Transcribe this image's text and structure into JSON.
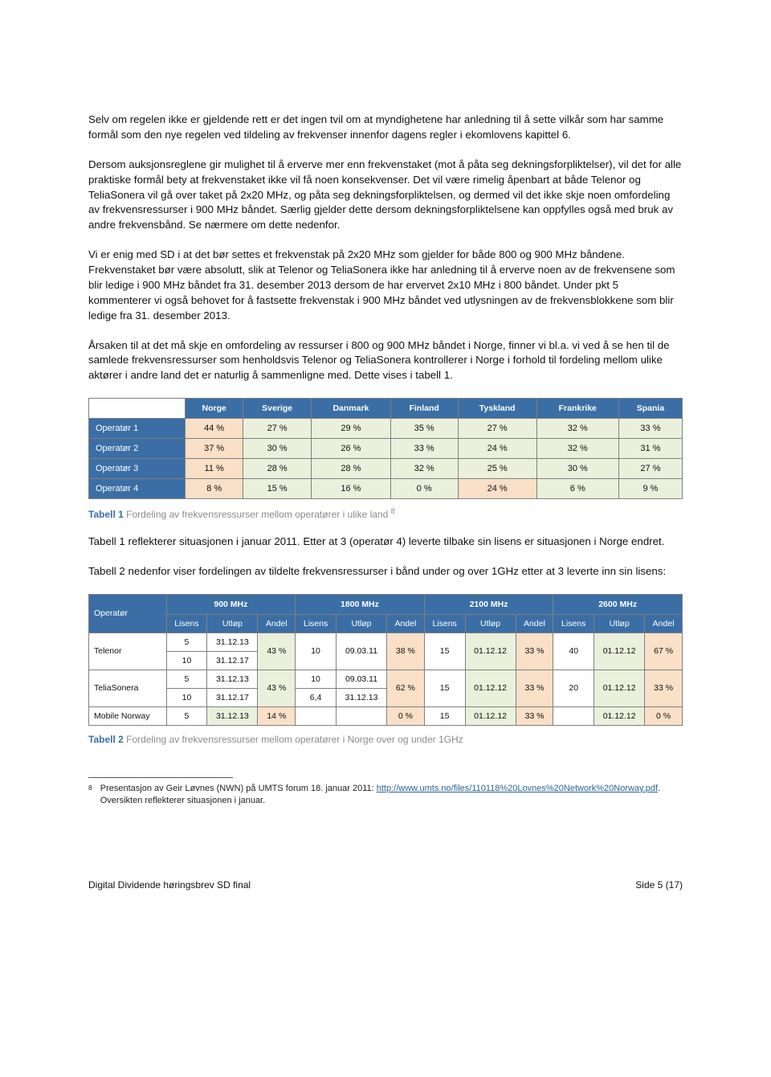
{
  "paragraphs": {
    "p1": "Selv om regelen ikke er gjeldende rett er det ingen tvil om at myndighetene har anledning til å sette vilkår som har samme formål som den nye regelen ved tildeling av frekvenser innenfor dagens regler i ekomlovens kapittel 6.",
    "p2": "Dersom auksjonsreglene gir mulighet til å erverve mer enn frekvenstaket (mot å påta seg dekningsforpliktelser), vil det for alle praktiske formål bety at frekvenstaket ikke vil få noen konsekvenser. Det vil være rimelig åpenbart at både Telenor og TeliaSonera vil gå over taket på 2x20 MHz, og påta seg dekningsforpliktelsen, og dermed vil det ikke skje noen omfordeling av frekvensressurser i 900 MHz båndet. Særlig gjelder dette dersom dekningsforpliktelsene kan oppfylles også med bruk av andre frekvensbånd. Se nærmere om dette nedenfor.",
    "p3": "Vi er enig med SD i at det bør settes et frekvenstak på 2x20 MHz som gjelder for både 800 og 900 MHz båndene. Frekvenstaket bør være absolutt, slik at Telenor og TeliaSonera ikke har anledning til å erverve noen av de frekvensene som blir ledige i 900 MHz båndet fra 31. desember 2013 dersom de har ervervet 2x10 MHz i 800 båndet. Under pkt 5 kommenterer vi også behovet for å fastsette frekvenstak i 900 MHz båndet ved utlysningen av de frekvensblokkene som blir ledige fra 31. desember 2013.",
    "p4": "Årsaken til at det må skje en omfordeling av ressurser i 800 og 900 MHz båndet i Norge, finner vi bl.a. vi ved å se hen til de samlede frekvensressurser som henholdsvis Telenor og TeliaSonera kontrollerer i Norge i forhold til fordeling mellom ulike aktører i andre land det er naturlig å sammenligne med. Dette vises i tabell 1.",
    "p5": "Tabell 1 reflekterer situasjonen i januar 2011. Etter at 3 (operatør 4) leverte tilbake sin lisens er situasjonen i Norge endret.",
    "p6": "Tabell 2 nedenfor viser fordelingen av tildelte frekvensressurser i bånd under og over 1GHz etter at 3 leverte inn sin lisens:"
  },
  "table1": {
    "columns": [
      "Norge",
      "Sverige",
      "Danmark",
      "Finland",
      "Tyskland",
      "Frankrike",
      "Spania"
    ],
    "rows": [
      {
        "label": "Operatør 1",
        "vals": [
          "44 %",
          "27 %",
          "29 %",
          "35 %",
          "27 %",
          "32 %",
          "33 %"
        ],
        "hl": [
          0
        ]
      },
      {
        "label": "Operatør 2",
        "vals": [
          "37 %",
          "30 %",
          "26 %",
          "33 %",
          "24 %",
          "32 %",
          "31 %"
        ],
        "hl": [
          0
        ]
      },
      {
        "label": "Operatør 3",
        "vals": [
          "11 %",
          "28 %",
          "28 %",
          "32 %",
          "25 %",
          "30 %",
          "27 %"
        ],
        "hl": [
          0
        ]
      },
      {
        "label": "Operatør 4",
        "vals": [
          "8 %",
          "15 %",
          "16 %",
          "0 %",
          "24 %",
          "6 %",
          "9 %"
        ],
        "hl": [
          0,
          4
        ]
      }
    ],
    "caption_label": "Tabell 1",
    "caption_text": "Fordeling av frekvensressurser mellom operatører i ulike land",
    "caption_ref": "8"
  },
  "table2": {
    "band_headers": [
      "900 MHz",
      "1800 MHz",
      "2100 MHz",
      "2600 MHz"
    ],
    "sub_headers": [
      "Lisens",
      "Utløp",
      "Andel"
    ],
    "operator_label": "Operatør",
    "rows": [
      {
        "op": "Telenor",
        "b900": {
          "lisens": [
            "5",
            "10"
          ],
          "utlop": [
            "31.12.13",
            "31.12.17"
          ],
          "andel": "43 %",
          "andel_hl": "grn"
        },
        "b1800": {
          "lisens": "10",
          "utlop": "09.03.11",
          "andel": "38 %",
          "andel_hl": "pch"
        },
        "b2100": {
          "lisens": "15",
          "utlop": "01.12.12",
          "andel": "33 %",
          "andel_hl": "pch"
        },
        "b2600": {
          "lisens": "40",
          "utlop": "01.12.12",
          "andel": "67 %",
          "andel_hl": "pch"
        }
      },
      {
        "op": "TeliaSonera",
        "b900": {
          "lisens": [
            "5",
            "10"
          ],
          "utlop": [
            "31.12.13",
            "31.12.17"
          ],
          "andel": "43 %",
          "andel_hl": "grn"
        },
        "b1800": {
          "lisens": [
            "10",
            "6,4"
          ],
          "utlop": [
            "09.03.11",
            "31.12.13"
          ],
          "andel": "62 %",
          "andel_hl": "pch"
        },
        "b2100": {
          "lisens": "15",
          "utlop": "01.12.12",
          "andel": "33 %",
          "andel_hl": "pch"
        },
        "b2600": {
          "lisens": "20",
          "utlop": "01.12.12",
          "andel": "33 %",
          "andel_hl": "pch"
        }
      },
      {
        "op": "Mobile Norway",
        "b900": {
          "lisens": "5",
          "utlop": "31.12.13",
          "andel": "14 %",
          "andel_hl": "pch"
        },
        "b1800": {
          "lisens": "",
          "utlop": "",
          "andel": "0 %",
          "andel_hl": "pch"
        },
        "b2100": {
          "lisens": "15",
          "utlop": "01.12.12",
          "andel": "33 %",
          "andel_hl": "pch"
        },
        "b2600": {
          "lisens": "",
          "utlop": "01.12.12",
          "andel": "0 %",
          "andel_hl": "pch"
        }
      }
    ],
    "caption_label": "Tabell 2",
    "caption_text": "Fordeling av frekvensressurser mellom operatører i Norge over og under 1GHz"
  },
  "footnote": {
    "num": "8",
    "text_before": "Presentasjon av Geir Løvnes (NWN) på UMTS forum 18. januar 2011: ",
    "link": "http://www.umts.no/files/110118%20Lovnes%20Network%20Norway.pdf",
    "text_after": ". Oversikten reflekterer situasjonen i januar."
  },
  "footer": {
    "left": "Digital Dividende høringsbrev SD final",
    "right": "Side 5 (17)"
  },
  "colors": {
    "header_bg": "#3b6ea5",
    "header_fg": "#ffffff",
    "cell_green": "#eaf0dc",
    "cell_peach": "#f9e0c7",
    "caption_grey": "#8a8a8a",
    "border": "#808080",
    "link": "#2a6496"
  }
}
